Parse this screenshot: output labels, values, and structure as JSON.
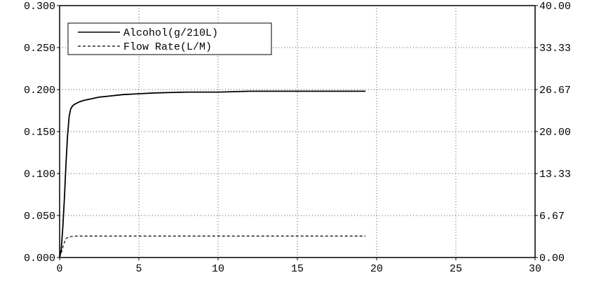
{
  "chart_data": {
    "type": "line",
    "title": "",
    "xlabel": "",
    "ylabel": "",
    "y2label": "",
    "xlim": [
      0,
      30
    ],
    "ylim": [
      0,
      0.3
    ],
    "y2lim": [
      0,
      40
    ],
    "grid": true,
    "legend_position": "top-left",
    "x_ticks": [
      "0",
      "5",
      "10",
      "15",
      "20",
      "25",
      "30"
    ],
    "y_ticks": [
      "0.000",
      "0.050",
      "0.100",
      "0.150",
      "0.200",
      "0.250",
      "0.300"
    ],
    "y2_ticks": [
      "0.00",
      "6.67",
      "13.33",
      "20.00",
      "26.67",
      "33.33",
      "40.00"
    ],
    "series": [
      {
        "name": "Alcohol(g/210L)",
        "axis": "left",
        "style": "solid",
        "color": "#000000",
        "x": [
          0,
          0.1,
          0.2,
          0.3,
          0.4,
          0.5,
          0.6,
          0.7,
          0.8,
          0.9,
          1.0,
          1.2,
          1.5,
          2,
          2.5,
          3,
          4,
          5,
          6,
          8,
          10,
          12,
          15,
          17,
          19.3
        ],
        "y": [
          0,
          0.01,
          0.035,
          0.07,
          0.11,
          0.145,
          0.168,
          0.177,
          0.18,
          0.182,
          0.183,
          0.185,
          0.187,
          0.189,
          0.191,
          0.192,
          0.194,
          0.195,
          0.196,
          0.197,
          0.197,
          0.198,
          0.198,
          0.198,
          0.198
        ]
      },
      {
        "name": "Flow Rate(L/M)",
        "axis": "right",
        "style": "dashed",
        "color": "#000000",
        "x": [
          0,
          0.1,
          0.2,
          0.3,
          0.4,
          0.6,
          1,
          5,
          10,
          15,
          19.3
        ],
        "y": [
          0,
          0.7,
          1.6,
          2.4,
          3.0,
          3.3,
          3.4,
          3.4,
          3.4,
          3.4,
          3.4
        ]
      }
    ]
  }
}
